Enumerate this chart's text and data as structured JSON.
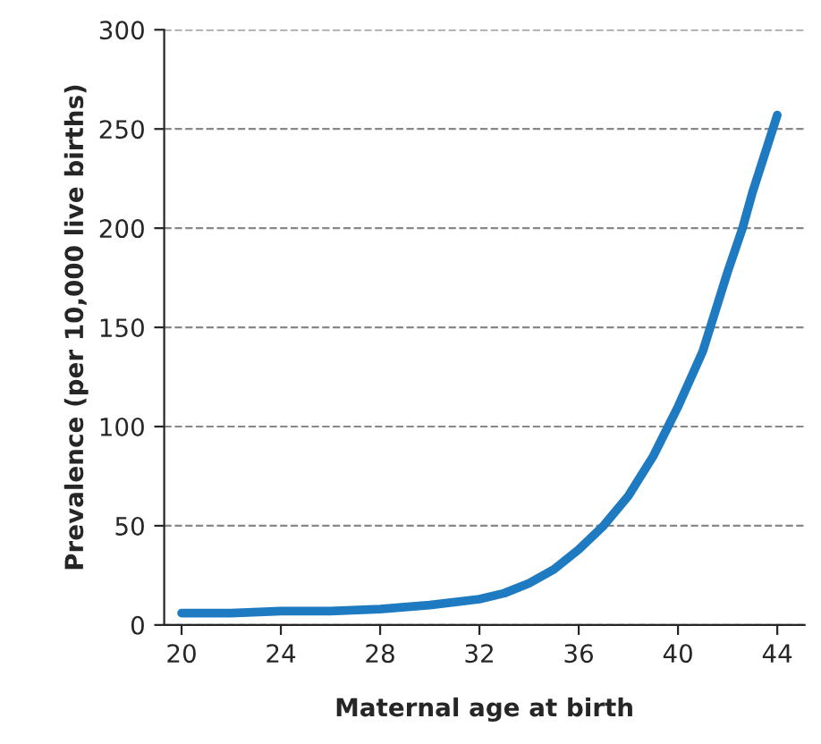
{
  "chart_data": {
    "type": "line",
    "xlabel": "Maternal age at birth",
    "ylabel": "Prevalence (per 10,000 live births)",
    "x": [
      20,
      22,
      24,
      26,
      28,
      30,
      32,
      33,
      34,
      35,
      36,
      37,
      38,
      39,
      39.6,
      40,
      41,
      41.3,
      42,
      42.6,
      43,
      44
    ],
    "series": [
      {
        "color": "#1f7bc1",
        "values": [
          6,
          6,
          7,
          7,
          8,
          10,
          13,
          16,
          21,
          28,
          38,
          50,
          65,
          85,
          100,
          110,
          138,
          150,
          178,
          200,
          218,
          257
        ]
      }
    ],
    "xlim": [
      19.3,
      45.1
    ],
    "xticks": [
      20,
      24,
      28,
      32,
      36,
      40,
      44
    ],
    "ylim": [
      0,
      300
    ],
    "yticks": [
      0,
      50,
      100,
      150,
      200,
      250,
      300
    ],
    "grid": "y",
    "marker": "none",
    "line_style": "solid"
  }
}
